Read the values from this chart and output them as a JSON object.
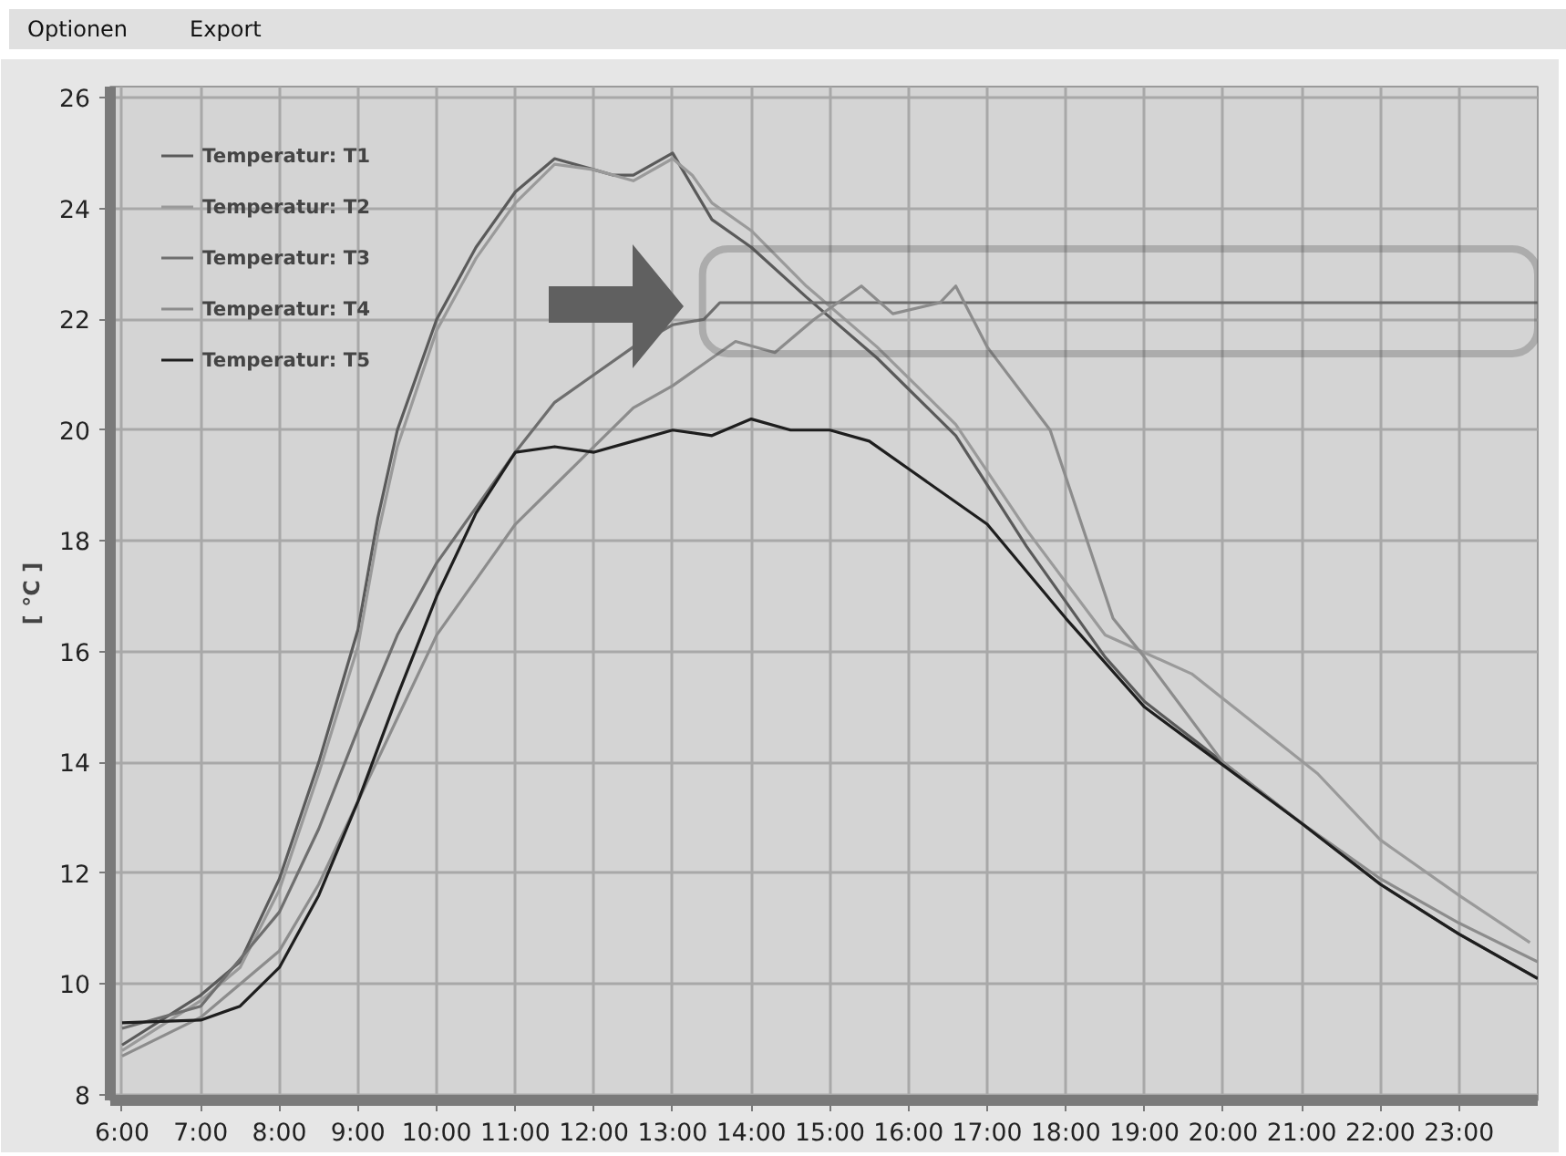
{
  "chart_data": {
    "type": "line",
    "ylabel": "[ °C ]",
    "annotations": [
      "Optionen",
      "Export"
    ],
    "xlim": [
      5.85,
      24
    ],
    "ylim": [
      7.9,
      26.2
    ],
    "xticks": [
      {
        "value": 6,
        "label": "6:00"
      },
      {
        "value": 7,
        "label": "7:00"
      },
      {
        "value": 8,
        "label": "8:00"
      },
      {
        "value": 9,
        "label": "9:00"
      },
      {
        "value": 10,
        "label": "10:00"
      },
      {
        "value": 11,
        "label": "11:00"
      },
      {
        "value": 12,
        "label": "12:00"
      },
      {
        "value": 13,
        "label": "13:00"
      },
      {
        "value": 14,
        "label": "14:00"
      },
      {
        "value": 15,
        "label": "15:00"
      },
      {
        "value": 16,
        "label": "16:00"
      },
      {
        "value": 17,
        "label": "17:00"
      },
      {
        "value": 18,
        "label": "18:00"
      },
      {
        "value": 19,
        "label": "19:00"
      },
      {
        "value": 20,
        "label": "20:00"
      },
      {
        "value": 21,
        "label": "21:00"
      },
      {
        "value": 22,
        "label": "22:00"
      },
      {
        "value": 23,
        "label": "23:00"
      }
    ],
    "yticks": [
      8,
      10,
      12,
      14,
      16,
      18,
      20,
      22,
      24,
      26
    ],
    "grid": true,
    "legend": "top left",
    "marker": "none",
    "line_style": "solid",
    "series": [
      {
        "name": "Temperatur: T1",
        "color": "#5a5a5a",
        "x": [
          6,
          7,
          7.5,
          8,
          8.5,
          9,
          9.25,
          9.5,
          10,
          10.5,
          11,
          11.5,
          12,
          12.25,
          12.5,
          13,
          13.25,
          13.5,
          14,
          14.7,
          15.6,
          16.6,
          17.5,
          18.5,
          19,
          20,
          21,
          22,
          23,
          24
        ],
        "values": [
          8.9,
          9.8,
          10.4,
          11.9,
          14.0,
          16.4,
          18.4,
          20.0,
          22.0,
          23.3,
          24.3,
          24.9,
          24.7,
          24.6,
          24.6,
          25.0,
          24.4,
          23.8,
          23.3,
          22.4,
          21.3,
          19.9,
          17.9,
          15.9,
          15.1,
          14.0,
          12.9,
          11.8,
          10.9,
          10.1
        ]
      },
      {
        "name": "Temperatur: T2",
        "color": "#9a9a9a",
        "x": [
          6,
          7,
          7.5,
          8,
          8.5,
          9,
          9.25,
          9.5,
          10,
          10.5,
          11,
          11.5,
          12,
          12.25,
          12.5,
          13,
          13.25,
          13.5,
          14,
          14.7,
          15.6,
          16.6,
          17.5,
          18.5,
          19.6,
          20.4,
          21.2,
          22,
          23,
          23.9
        ],
        "values": [
          8.8,
          9.7,
          10.3,
          11.7,
          13.8,
          16.1,
          18.1,
          19.7,
          21.8,
          23.1,
          24.1,
          24.8,
          24.7,
          24.6,
          24.5,
          24.9,
          24.6,
          24.1,
          23.6,
          22.6,
          21.5,
          20.1,
          18.2,
          16.3,
          15.6,
          14.7,
          13.8,
          12.6,
          11.6,
          10.75
        ]
      },
      {
        "name": "Temperatur: T3",
        "color": "#6e6e6e",
        "x": [
          6,
          7,
          8,
          8.5,
          9,
          9.5,
          10,
          10.5,
          11,
          11.5,
          12,
          12.5,
          13,
          13.4,
          13.6,
          24
        ],
        "values": [
          9.2,
          9.6,
          11.3,
          12.8,
          14.6,
          16.3,
          17.6,
          18.6,
          19.6,
          20.5,
          21.0,
          21.5,
          21.9,
          22.0,
          22.3,
          22.3
        ]
      },
      {
        "name": "Temperatur: T4",
        "color": "#8c8c8c",
        "x": [
          6,
          7,
          8,
          8.5,
          9,
          9.5,
          10,
          10.5,
          11,
          11.5,
          12,
          12.5,
          13,
          13.8,
          14.3,
          14.8,
          15.4,
          15.8,
          16.4,
          16.6,
          17,
          17.8,
          18.6,
          19,
          20,
          21,
          22,
          23,
          24
        ],
        "values": [
          8.7,
          9.4,
          10.6,
          11.8,
          13.3,
          14.8,
          16.3,
          17.3,
          18.3,
          19.0,
          19.7,
          20.4,
          20.8,
          21.6,
          21.4,
          22.0,
          22.6,
          22.1,
          22.3,
          22.6,
          21.5,
          20.0,
          16.6,
          15.9,
          14.0,
          12.9,
          11.9,
          11.1,
          10.4
        ]
      },
      {
        "name": "Temperatur: T5",
        "color": "#1e1e1e",
        "x": [
          6,
          7,
          7.5,
          8,
          8.5,
          9,
          9.5,
          10,
          10.5,
          11,
          11.5,
          12,
          12.5,
          13,
          13.5,
          14,
          14.5,
          15,
          15.5,
          16,
          17,
          18,
          19,
          20,
          21,
          22,
          23,
          24
        ],
        "values": [
          9.3,
          9.35,
          9.6,
          10.3,
          11.6,
          13.3,
          15.2,
          17.0,
          18.5,
          19.6,
          19.7,
          19.6,
          19.8,
          20.0,
          19.9,
          20.2,
          20.0,
          20.0,
          19.8,
          19.3,
          18.3,
          16.6,
          15.0,
          13.95,
          12.9,
          11.8,
          10.9,
          10.1
        ]
      }
    ]
  }
}
